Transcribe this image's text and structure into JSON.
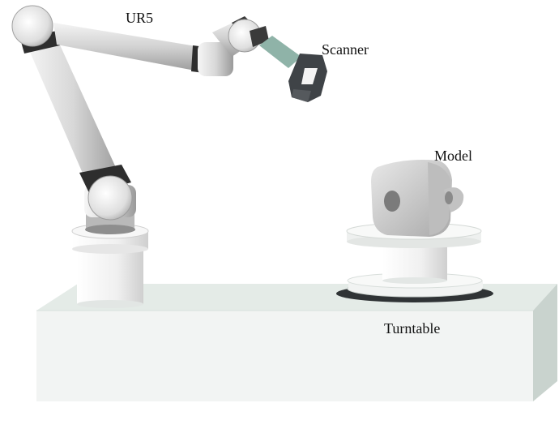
{
  "labels": {
    "robot": "UR5",
    "scanner": "Scanner",
    "model": "Model",
    "turntable": "Turntable"
  },
  "colors": {
    "table_top": "#e4ebe7",
    "table_front": "#f2f4f3",
    "table_side": "#c8d2cd",
    "arm_metal": "#d6d6d6",
    "joint_band": "#3a3a3a",
    "scanner_body": "#3f4347",
    "scanner_mount": "#8fb3a8",
    "model": "#cfcfcf",
    "turntable": "#f1f3f2",
    "turntable_shadow": "#2f3335"
  }
}
